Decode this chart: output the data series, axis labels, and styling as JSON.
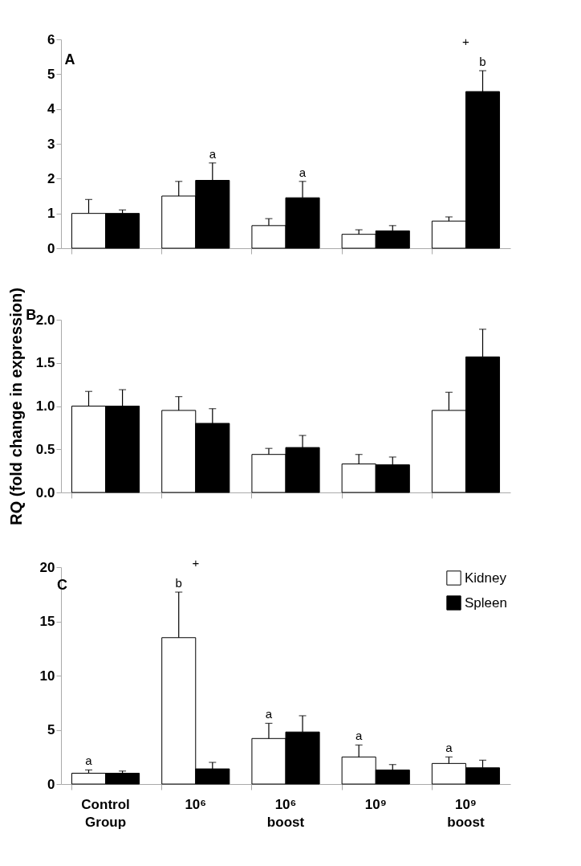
{
  "chart_data": [
    {
      "type": "bar",
      "title": "A",
      "categories": [
        "Control Group",
        "10⁶",
        "10⁶ boost",
        "10⁹",
        "10⁹ boost"
      ],
      "ylim": [
        0,
        6
      ],
      "yticks": [
        0,
        1,
        2,
        3,
        4,
        5,
        6
      ],
      "tick_labels": "y",
      "grid": false,
      "series": [
        {
          "color": "#ffffff",
          "values": [
            1.0,
            1.5,
            0.65,
            0.4,
            0.78
          ],
          "errors": [
            [
              1.0,
              1.4
            ],
            [
              1.5,
              1.92
            ],
            [
              0.65,
              0.85
            ],
            [
              0.4,
              0.53
            ],
            [
              0.78,
              0.9
            ]
          ]
        },
        {
          "color": "#000000",
          "values": [
            1.0,
            1.95,
            1.45,
            0.5,
            4.5
          ],
          "errors": [
            [
              1.0,
              1.1
            ],
            [
              1.95,
              2.45
            ],
            [
              1.45,
              1.92
            ],
            [
              0.5,
              0.65
            ],
            [
              4.5,
              5.1
            ]
          ]
        }
      ],
      "annotations": [
        {
          "text": "a",
          "x": "10⁶",
          "y": 1.95
        },
        {
          "text": "a",
          "x": "10⁶ boost",
          "y": 1.45
        },
        {
          "text": "b",
          "x": "10⁹ boost",
          "y": 4.5
        },
        "+"
      ]
    },
    {
      "type": "bar",
      "title": "B",
      "ylabel": "RQ (fold change in expression)",
      "categories": [
        "Control Group",
        "10⁶",
        "10⁶ boost",
        "10⁹",
        "10⁹ boost"
      ],
      "ylim": [
        0,
        2
      ],
      "yticks": [
        {
          "value": 0,
          "label": "0.0"
        },
        0.5,
        {
          "value": 1,
          "label": "1.0"
        },
        1.5,
        {
          "value": 2,
          "label": "2.0"
        }
      ],
      "tick_labels": "y",
      "grid": false,
      "series": [
        {
          "color": "#ffffff",
          "values": [
            1.0,
            0.95,
            0.44,
            0.33,
            0.95
          ],
          "errors": [
            [
              1.0,
              1.17
            ],
            [
              0.95,
              1.11
            ],
            [
              0.44,
              0.51
            ],
            [
              0.33,
              0.44
            ],
            [
              0.95,
              1.16
            ]
          ]
        },
        {
          "color": "#000000",
          "values": [
            1.0,
            0.8,
            0.52,
            0.32,
            1.57
          ],
          "errors": [
            [
              1.0,
              1.19
            ],
            [
              0.8,
              0.97
            ],
            [
              0.52,
              0.66
            ],
            [
              0.32,
              0.41
            ],
            [
              1.57,
              1.89
            ]
          ]
        }
      ]
    },
    {
      "type": "bar",
      "title": "C",
      "categories": [
        "Control Group",
        "10⁶",
        "10⁶ boost",
        "10⁹",
        "10⁹ boost"
      ],
      "ylim": [
        0,
        20
      ],
      "yticks": [
        0,
        5,
        10,
        15,
        20
      ],
      "grid": false,
      "legend": "top right",
      "series": [
        {
          "name": "Kidney",
          "color": "#ffffff",
          "values": [
            1.0,
            13.5,
            4.2,
            2.5,
            1.9
          ],
          "errors": [
            [
              1.0,
              1.3
            ],
            [
              13.5,
              17.7
            ],
            [
              4.2,
              5.6
            ],
            [
              2.5,
              3.6
            ],
            [
              1.9,
              2.5
            ]
          ]
        },
        {
          "name": "Spleen",
          "color": "#000000",
          "values": [
            1.0,
            1.4,
            4.8,
            1.3,
            1.5
          ],
          "errors": [
            [
              1.0,
              1.2
            ],
            [
              1.4,
              2.0
            ],
            [
              4.8,
              6.3
            ],
            [
              1.3,
              1.8
            ],
            [
              1.5,
              2.2
            ]
          ]
        }
      ],
      "annotations": [
        {
          "text": "a",
          "x": "Control Group",
          "y": 1.0
        },
        "b",
        "+",
        {
          "text": "a",
          "x": "10⁶ boost",
          "y": 4.2
        },
        {
          "text": "a",
          "x": "10⁹",
          "y": 2.5
        },
        {
          "text": "a",
          "x": "10⁹ boost",
          "y": 1.9
        }
      ]
    }
  ]
}
